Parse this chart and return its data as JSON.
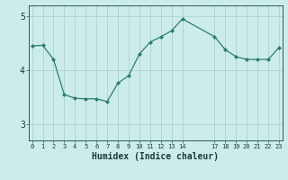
{
  "x": [
    0,
    1,
    2,
    3,
    4,
    5,
    6,
    7,
    8,
    9,
    10,
    11,
    12,
    13,
    14,
    17,
    18,
    19,
    20,
    21,
    22,
    23
  ],
  "y": [
    4.45,
    4.46,
    4.2,
    3.55,
    3.48,
    3.47,
    3.47,
    3.42,
    3.76,
    3.9,
    4.3,
    4.52,
    4.62,
    4.73,
    4.95,
    4.62,
    4.38,
    4.25,
    4.2,
    4.2,
    4.2,
    4.42
  ],
  "line_color": "#2e7d6e",
  "marker": "D",
  "marker_size": 2.0,
  "bg_color": "#ccecea",
  "grid_color": "#aad4d2",
  "xlabel": "Humidex (Indice chaleur)",
  "xlabel_fontsize": 7,
  "xtick_positions": [
    0,
    1,
    2,
    3,
    4,
    5,
    6,
    7,
    8,
    9,
    10,
    11,
    12,
    13,
    14,
    17,
    18,
    19,
    20,
    21,
    22,
    23
  ],
  "xtick_labels": [
    "0",
    "1",
    "2",
    "3",
    "4",
    "5",
    "6",
    "7",
    "8",
    "9",
    "10",
    "11",
    "12",
    "13",
    "14",
    "17",
    "18",
    "19",
    "20",
    "21",
    "22",
    "23"
  ],
  "yticks": [
    3,
    4,
    5
  ],
  "ylim": [
    2.7,
    5.2
  ],
  "xlim": [
    -0.3,
    23.3
  ]
}
